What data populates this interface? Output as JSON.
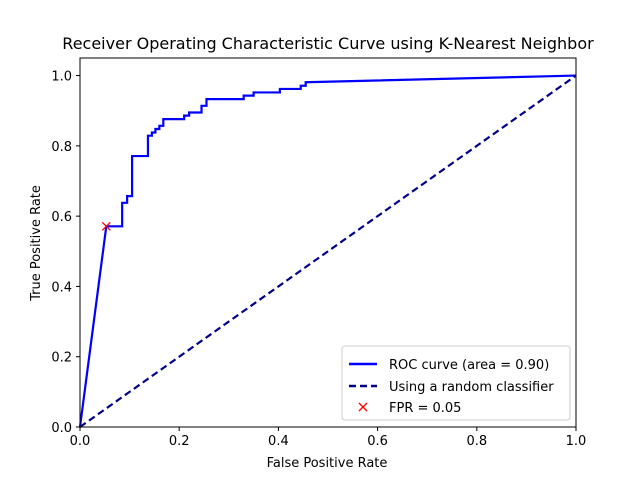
{
  "chart_data": {
    "type": "line",
    "title": "Receiver Operating Characteristic Curve using K-Nearest Neighbor",
    "xlabel": "False Positive Rate",
    "ylabel": "True Positive Rate",
    "xlim": [
      0.0,
      1.0
    ],
    "ylim": [
      0.0,
      1.05
    ],
    "x_ticks": [
      "0.0",
      "0.2",
      "0.4",
      "0.6",
      "0.8",
      "1.0"
    ],
    "y_ticks": [
      "0.0",
      "0.2",
      "0.4",
      "0.6",
      "0.8",
      "1.0"
    ],
    "x_tick_values": [
      0.0,
      0.2,
      0.4,
      0.6,
      0.8,
      1.0
    ],
    "y_tick_values": [
      0.0,
      0.2,
      0.4,
      0.6,
      0.8,
      1.0
    ],
    "grid": false,
    "legend_position": "lower-right",
    "series": [
      {
        "name": "ROC curve (area = 0.90)",
        "style": "solid",
        "color": "#0000ff",
        "x": [
          0.0,
          0.053,
          0.053,
          0.085,
          0.085,
          0.095,
          0.095,
          0.105,
          0.105,
          0.137,
          0.137,
          0.145,
          0.145,
          0.152,
          0.152,
          0.16,
          0.16,
          0.168,
          0.168,
          0.21,
          0.21,
          0.22,
          0.22,
          0.245,
          0.245,
          0.255,
          0.255,
          0.33,
          0.33,
          0.35,
          0.35,
          0.403,
          0.403,
          0.445,
          0.445,
          0.455,
          0.455,
          1.0
        ],
        "y": [
          0.0,
          0.571,
          0.571,
          0.571,
          0.638,
          0.638,
          0.657,
          0.657,
          0.771,
          0.771,
          0.829,
          0.829,
          0.838,
          0.838,
          0.848,
          0.848,
          0.857,
          0.857,
          0.876,
          0.876,
          0.886,
          0.886,
          0.895,
          0.895,
          0.914,
          0.914,
          0.933,
          0.933,
          0.943,
          0.943,
          0.952,
          0.952,
          0.962,
          0.962,
          0.971,
          0.971,
          0.981,
          1.0
        ]
      },
      {
        "name": "Using a random classifier",
        "style": "dashed",
        "color": "#00008b",
        "x": [
          0.0,
          1.0
        ],
        "y": [
          0.0,
          1.0
        ]
      }
    ],
    "markers": [
      {
        "name": "FPR = 0.05",
        "symbol": "x",
        "color": "#ff0000",
        "x": 0.053,
        "y": 0.571
      }
    ]
  }
}
